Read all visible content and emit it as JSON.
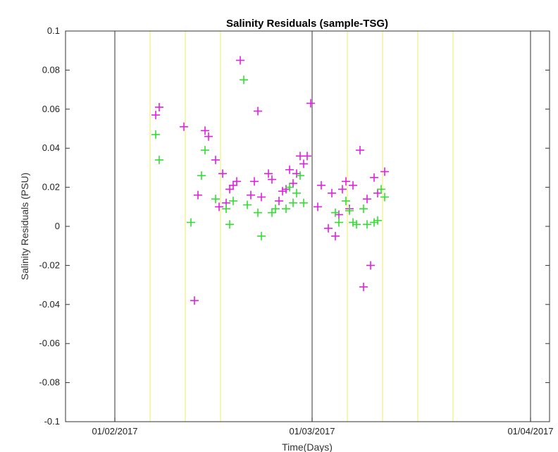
{
  "chart_data": {
    "type": "scatter",
    "title": "Salinity Residuals (sample-TSG)",
    "xlabel": "Time(Days)",
    "ylabel": "Salinity Residuals (PSU)",
    "x_ticks": [
      "01/02/2017",
      "01/03/2017",
      "01/04/2017"
    ],
    "ylim": [
      -0.1,
      0.1
    ],
    "y_ticks": [
      "-0.1",
      "-0.08",
      "-0.06",
      "-0.04",
      "-0.02",
      "0",
      "0.02",
      "0.04",
      "0.06",
      "0.08",
      "0.1"
    ],
    "marker": "+",
    "colors": {
      "magenta": "#e020e0",
      "green": "#33dd33",
      "yellow": "#f0f080",
      "black": "#555555"
    },
    "vertical_lines": {
      "black": [
        "01/02/2017",
        "01/03/2017",
        "01/04/2017"
      ],
      "yellow": [
        "06/02/2017",
        "11/02/2017",
        "16/02/2017",
        "06/03/2017",
        "11/03/2017",
        "16/03/2017",
        "21/03/2017"
      ]
    },
    "series": [
      {
        "color": "#e020e0",
        "points": [
          [
            "07/02/2017",
            0.057
          ],
          [
            "07/02/2017",
            0.061
          ],
          [
            "11/02/2017",
            0.051
          ],
          [
            "12/02/2017",
            -0.038
          ],
          [
            "13/02/2017",
            0.016
          ],
          [
            "14/02/2017",
            0.046
          ],
          [
            "14/02/2017",
            0.049
          ],
          [
            "15/02/2017",
            0.034
          ],
          [
            "16/02/2017",
            0.01
          ],
          [
            "16/02/2017",
            0.027
          ],
          [
            "17/02/2017",
            0.012
          ],
          [
            "17/02/2017",
            0.019
          ],
          [
            "18/02/2017",
            0.021
          ],
          [
            "18/02/2017",
            0.023
          ],
          [
            "19/02/2017",
            0.085
          ],
          [
            "20/02/2017",
            0.016
          ],
          [
            "21/02/2017",
            0.023
          ],
          [
            "21/02/2017",
            0.059
          ],
          [
            "22/02/2017",
            0.015
          ],
          [
            "23/02/2017",
            0.024
          ],
          [
            "23/02/2017",
            0.027
          ],
          [
            "24/02/2017",
            0.013
          ],
          [
            "25/02/2017",
            0.018
          ],
          [
            "25/02/2017",
            0.019
          ],
          [
            "26/02/2017",
            0.029
          ],
          [
            "26/02/2017",
            0.022
          ],
          [
            "27/02/2017",
            0.027
          ],
          [
            "27/02/2017",
            0.036
          ],
          [
            "28/02/2017",
            0.032
          ],
          [
            "28/02/2017",
            0.036
          ],
          [
            "01/03/2017",
            0.063
          ],
          [
            "02/03/2017",
            0.021
          ],
          [
            "02/03/2017",
            0.01
          ],
          [
            "03/03/2017",
            -0.001
          ],
          [
            "04/03/2017",
            0.017
          ],
          [
            "04/03/2017",
            -0.005
          ],
          [
            "05/03/2017",
            0.006
          ],
          [
            "05/03/2017",
            0.019
          ],
          [
            "06/03/2017",
            0.023
          ],
          [
            "06/03/2017",
            0.009
          ],
          [
            "07/03/2017",
            0.021
          ],
          [
            "08/03/2017",
            -0.031
          ],
          [
            "08/03/2017",
            0.039
          ],
          [
            "09/03/2017",
            -0.02
          ],
          [
            "09/03/2017",
            0.014
          ],
          [
            "10/03/2017",
            0.017
          ],
          [
            "10/03/2017",
            0.025
          ],
          [
            "11/03/2017",
            0.028
          ]
        ]
      },
      {
        "color": "#33dd33",
        "points": [
          [
            "07/02/2017",
            0.047
          ],
          [
            "07/02/2017",
            0.034
          ],
          [
            "12/02/2017",
            0.002
          ],
          [
            "13/02/2017",
            0.026
          ],
          [
            "14/02/2017",
            0.039
          ],
          [
            "15/02/2017",
            0.014
          ],
          [
            "17/02/2017",
            0.009
          ],
          [
            "17/02/2017",
            0.001
          ],
          [
            "18/02/2017",
            0.013
          ],
          [
            "19/02/2017",
            0.075
          ],
          [
            "20/02/2017",
            0.011
          ],
          [
            "21/02/2017",
            0.007
          ],
          [
            "22/02/2017",
            -0.005
          ],
          [
            "23/02/2017",
            0.007
          ],
          [
            "24/02/2017",
            0.009
          ],
          [
            "25/02/2017",
            0.009
          ],
          [
            "26/02/2017",
            0.02
          ],
          [
            "26/02/2017",
            0.012
          ],
          [
            "27/02/2017",
            0.017
          ],
          [
            "27/02/2017",
            0.026
          ],
          [
            "28/02/2017",
            0.012
          ],
          [
            "04/03/2017",
            0.007
          ],
          [
            "05/03/2017",
            0.002
          ],
          [
            "06/03/2017",
            0.008
          ],
          [
            "06/03/2017",
            0.013
          ],
          [
            "07/03/2017",
            0.001
          ],
          [
            "07/03/2017",
            0.002
          ],
          [
            "08/03/2017",
            0.009
          ],
          [
            "09/03/2017",
            0.001
          ],
          [
            "10/03/2017",
            0.003
          ],
          [
            "10/03/2017",
            0.002
          ],
          [
            "11/03/2017",
            0.015
          ],
          [
            "11/03/2017",
            0.019
          ]
        ]
      }
    ]
  }
}
